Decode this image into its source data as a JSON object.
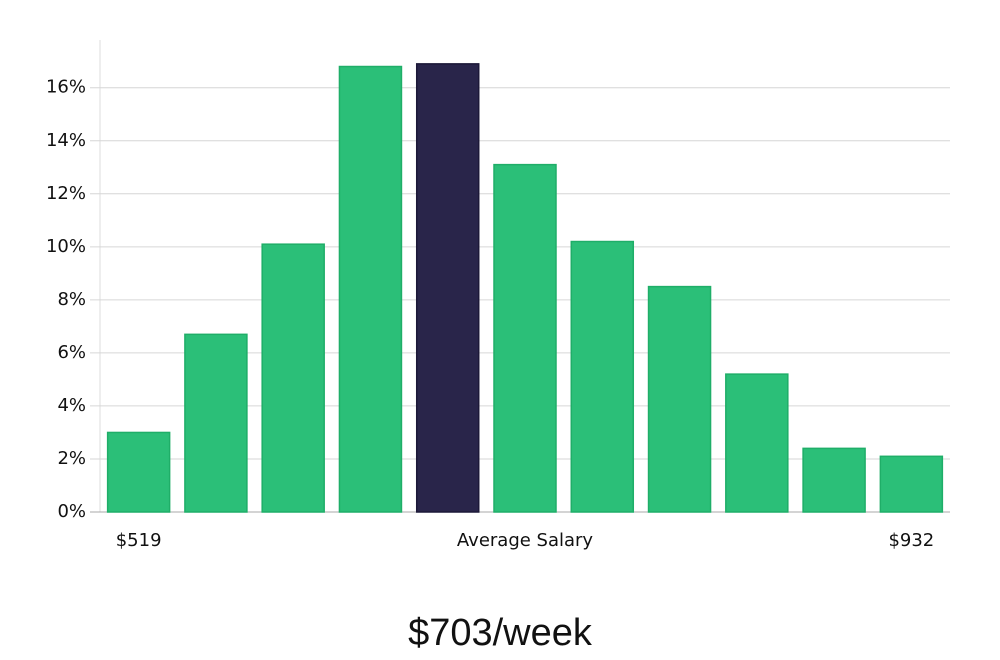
{
  "chart_data": {
    "type": "bar",
    "categories": [
      "$519",
      null,
      null,
      null,
      null,
      null,
      null,
      null,
      null,
      null,
      "$932"
    ],
    "values": [
      3.0,
      6.7,
      10.1,
      16.8,
      16.9,
      13.1,
      10.2,
      8.5,
      5.2,
      2.4,
      2.1
    ],
    "color": "#2bbf78",
    "highlight_color": "#29254a",
    "highlight_index": 4,
    "x_label": "Average Salary",
    "ylim": [
      0,
      17.8
    ],
    "yticks": [
      {
        "value": 0,
        "label": "0%"
      },
      {
        "value": 2,
        "label": "2%"
      },
      {
        "value": 4,
        "label": "4%"
      },
      {
        "value": 6,
        "label": "6%"
      },
      {
        "value": 8,
        "label": "8%"
      },
      {
        "value": 10,
        "label": "10%"
      },
      {
        "value": 12,
        "label": "12%"
      },
      {
        "value": 14,
        "label": "14%"
      },
      {
        "value": 16,
        "label": "16%"
      }
    ],
    "grid": true,
    "footer": "$703/week"
  }
}
